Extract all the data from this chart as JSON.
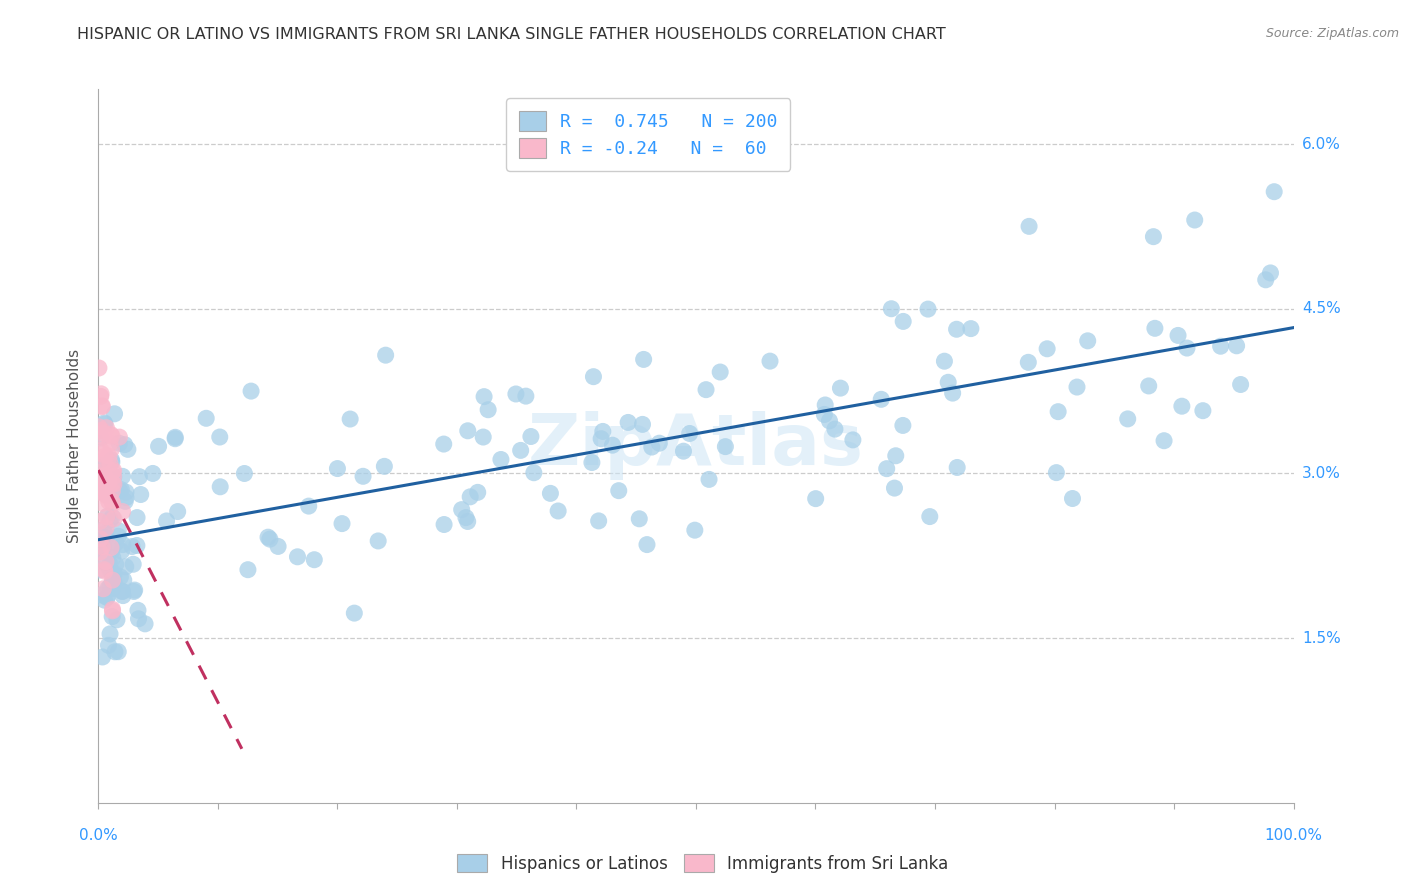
{
  "title": "HISPANIC OR LATINO VS IMMIGRANTS FROM SRI LANKA SINGLE FATHER HOUSEHOLDS CORRELATION CHART",
  "source": "Source: ZipAtlas.com",
  "ylabel": "Single Father Households",
  "watermark": "ZipAtlas",
  "legend_blue_label": "Hispanics or Latinos",
  "legend_pink_label": "Immigrants from Sri Lanka",
  "blue_R": 0.745,
  "blue_N": 200,
  "pink_R": -0.24,
  "pink_N": 60,
  "blue_color": "#a8cfe8",
  "pink_color": "#f9b8cb",
  "blue_line_color": "#2060a0",
  "pink_line_color": "#c03060",
  "xlim": [
    0,
    1.0
  ],
  "ylim": [
    0,
    0.065
  ],
  "xticks": [
    0.0,
    0.1,
    0.2,
    0.3,
    0.4,
    0.5,
    0.6,
    0.7,
    0.8,
    0.9,
    1.0
  ],
  "xticklabels_bottom": [
    "0.0%",
    "",
    "",
    "",
    "",
    "",
    "",
    "",
    "",
    "",
    "100.0%"
  ],
  "ytick_positions": [
    0.015,
    0.03,
    0.045,
    0.06
  ],
  "ytick_labels": [
    "1.5%",
    "3.0%",
    "4.5%",
    "6.0%"
  ],
  "grid_color": "#cccccc",
  "background_color": "#ffffff",
  "title_fontsize": 11.5,
  "label_fontsize": 11,
  "tick_fontsize": 11,
  "figsize": [
    14.06,
    8.92
  ],
  "dpi": 100,
  "blue_line_start_y": 0.024,
  "blue_line_end_y": 0.042,
  "pink_line_start_y": 0.032,
  "pink_line_end_x": 0.12
}
